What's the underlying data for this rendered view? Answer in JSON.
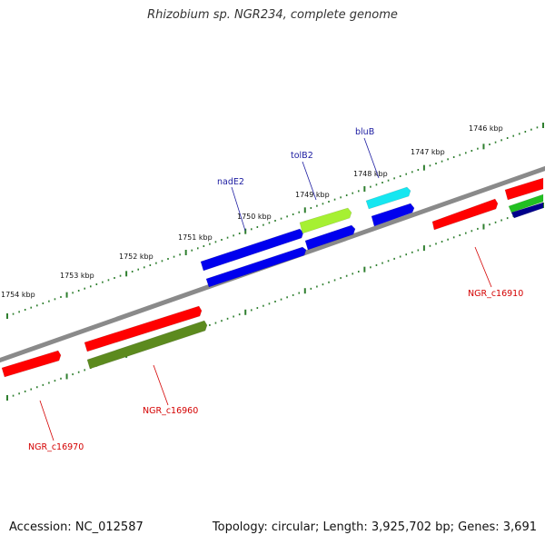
{
  "title": "Rhizobium sp. NGR234, complete genome",
  "footer": {
    "accession": "Accession: NC_012587",
    "summary": "Topology: circular; Length: 3,925,702 bp; Genes: 3,691"
  },
  "tick_labels": [
    "1746 kbp",
    "1747 kbp",
    "1748 kbp",
    "1749 kbp",
    "1750 kbp",
    "1751 kbp",
    "1752 kbp",
    "1753 kbp",
    "1754 kbp"
  ],
  "gene_labels": [
    "bluB",
    "tolB2",
    "nadE2",
    "NGR_c16910",
    "NGR_c16960",
    "NGR_c16970"
  ],
  "colors": {
    "backbone": "#8a8a8a",
    "ticks": "#2f7f2f",
    "red": "#ff0000",
    "blue": "#0000ee",
    "light_green": "#a6f032",
    "cyan": "#16e6f0",
    "olive": "#5c8a1e",
    "green": "#22c022",
    "navy": "#00008b",
    "gene_label_blue": "#1a1aa0",
    "gene_label_red": "#d40000"
  }
}
